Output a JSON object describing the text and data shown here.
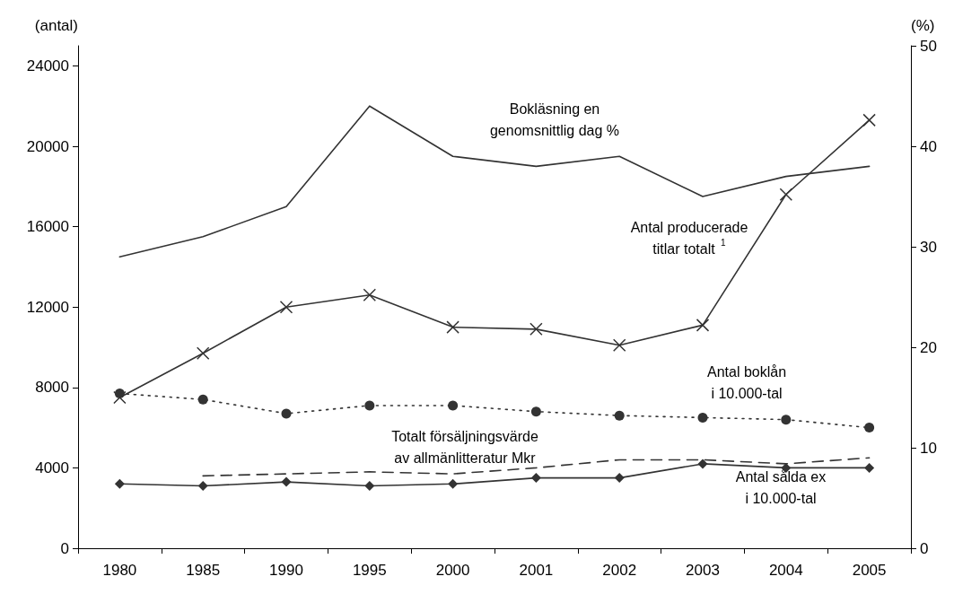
{
  "chart_data": {
    "type": "line",
    "categories": [
      "1980",
      "1985",
      "1990",
      "1995",
      "2000",
      "2001",
      "2002",
      "2003",
      "2004",
      "2005"
    ],
    "ylabel": "(antal)",
    "y2label": "(%)",
    "ylim": [
      0,
      25000
    ],
    "yticks": [
      0,
      4000,
      8000,
      12000,
      16000,
      20000,
      24000
    ],
    "y2lim": [
      0,
      50
    ],
    "y2ticks": [
      0,
      10,
      20,
      30,
      40,
      50
    ],
    "grid": false,
    "legend": false,
    "series": [
      {
        "name": "Bokläsning en\ngenomsnittlig dag %",
        "axis": "y2",
        "color": "#333333",
        "marker": "none",
        "line_style": "solid",
        "values": [
          29,
          31,
          34,
          44,
          39,
          38,
          39,
          35,
          37,
          38
        ]
      },
      {
        "name": "Antal producerade\ntitlar totalt $^{1}$",
        "color": "#333333",
        "marker": "cross",
        "line_style": "solid",
        "values": [
          7500,
          9700,
          12000,
          12600,
          11000,
          10900,
          10100,
          11100,
          17600,
          21300
        ]
      },
      {
        "name": "Antal boklån\ni 10.000-tal",
        "color": "#333333",
        "marker": "circle",
        "line_style": "dotted",
        "values": [
          7700,
          7400,
          6700,
          7100,
          7100,
          6800,
          6600,
          6500,
          6400,
          6000
        ]
      },
      {
        "name": "Totalt försäljningsvärde\nav allmänlitteratur Mkr",
        "color": "#333333",
        "marker": "none",
        "line_style": "dashed",
        "values": [
          null,
          3600,
          3700,
          3800,
          3700,
          4000,
          4400,
          4400,
          4200,
          4500
        ]
      },
      {
        "name": "Antal sålda ex\ni 10.000-tal",
        "color": "#333333",
        "marker": "diamond",
        "line_style": "solid",
        "values": [
          3200,
          3100,
          3300,
          3100,
          3200,
          3500,
          3500,
          4200,
          4000,
          4000
        ]
      }
    ]
  }
}
